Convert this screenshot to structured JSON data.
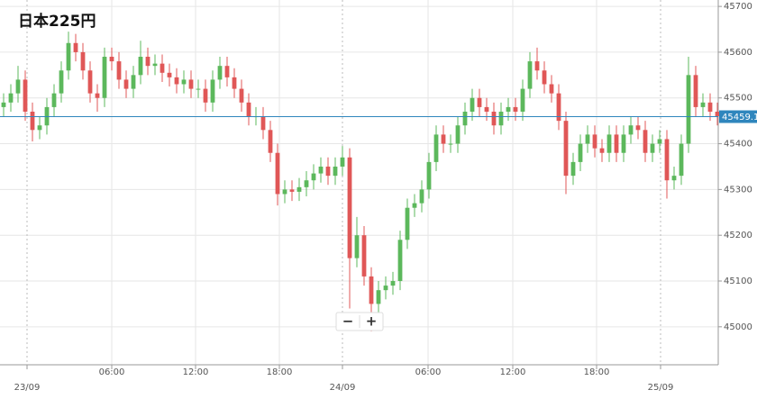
{
  "chart_data": {
    "type": "candlestick",
    "title": "日本225円",
    "open": [
      45480,
      45490,
      45510,
      45540,
      45470,
      45430,
      45440,
      45480,
      45510,
      45560,
      45620,
      45600,
      45560,
      45510,
      45500,
      45590,
      45580,
      45540,
      45520,
      45550,
      45590,
      45570,
      45575,
      45555,
      45545,
      45530,
      45540,
      45520,
      45520,
      45490,
      45540,
      45570,
      45545,
      45520,
      45490,
      45460,
      45460,
      45430,
      45380,
      45290,
      45300,
      45295,
      45305,
      45320,
      45335,
      45350,
      45330,
      45350,
      45370,
      45150,
      45200,
      45110,
      45050,
      45080,
      45090,
      45100,
      45190,
      45260,
      45270,
      45300,
      45360,
      45420,
      45400,
      45400,
      45440,
      45470,
      45500,
      45480,
      45470,
      45440,
      45470,
      45480,
      45470,
      45520,
      45580,
      45560,
      45530,
      45510,
      45450,
      45330,
      45360,
      45400,
      45420,
      45390,
      45380,
      45420,
      45380,
      45420,
      45440,
      45430,
      45380,
      45400,
      45410,
      45320,
      45330,
      45400,
      45550,
      45480,
      45490,
      45470
    ],
    "high": [
      45510,
      45530,
      45570,
      45560,
      45490,
      45460,
      45500,
      45530,
      45580,
      45645,
      45640,
      45620,
      45580,
      45530,
      45610,
      45610,
      45600,
      45560,
      45570,
      45625,
      45610,
      45595,
      45595,
      45575,
      45565,
      45560,
      45560,
      45540,
      45540,
      45560,
      45590,
      45590,
      45565,
      45540,
      45510,
      45480,
      45480,
      45450,
      45400,
      45320,
      45320,
      45325,
      45340,
      45355,
      45370,
      45370,
      45370,
      45395,
      45390,
      45240,
      45220,
      45130,
      45100,
      45110,
      45120,
      45210,
      45280,
      45290,
      45320,
      45380,
      45440,
      45440,
      45420,
      45460,
      45490,
      45520,
      45520,
      45500,
      45490,
      45490,
      45500,
      45500,
      45540,
      45600,
      45610,
      45580,
      45550,
      45530,
      45470,
      45380,
      45420,
      45440,
      45440,
      45410,
      45440,
      45440,
      45440,
      45460,
      45460,
      45450,
      45420,
      45430,
      45430,
      45350,
      45420,
      45590,
      45570,
      45510,
      45510,
      45490
    ],
    "low": [
      45460,
      45470,
      45490,
      45450,
      45405,
      45410,
      45420,
      45460,
      45490,
      45540,
      45580,
      45540,
      45490,
      45470,
      45480,
      45560,
      45520,
      45500,
      45500,
      45530,
      45550,
      45550,
      45535,
      45525,
      45510,
      45510,
      45500,
      45500,
      45470,
      45470,
      45520,
      45525,
      45500,
      45470,
      45440,
      45440,
      45410,
      45360,
      45265,
      45270,
      45275,
      45275,
      45285,
      45300,
      45315,
      45310,
      45310,
      45330,
      45040,
      45130,
      45090,
      44990,
      45030,
      45060,
      45070,
      45080,
      45170,
      45240,
      45250,
      45280,
      45340,
      45380,
      45380,
      45380,
      45420,
      45450,
      45460,
      45450,
      45420,
      45420,
      45450,
      45450,
      45450,
      45500,
      45540,
      45510,
      45490,
      45430,
      45290,
      45310,
      45340,
      45380,
      45370,
      45360,
      45360,
      45360,
      45360,
      45400,
      45410,
      45360,
      45360,
      45380,
      45280,
      45300,
      45310,
      45380,
      45460,
      45460,
      45450,
      45440
    ],
    "close": [
      45490,
      45510,
      45540,
      45470,
      45430,
      45440,
      45480,
      45510,
      45560,
      45620,
      45600,
      45560,
      45510,
      45500,
      45590,
      45580,
      45540,
      45520,
      45550,
      45590,
      45570,
      45575,
      45555,
      45545,
      45530,
      45540,
      45520,
      45520,
      45490,
      45540,
      45570,
      45545,
      45520,
      45490,
      45460,
      45460,
      45430,
      45380,
      45290,
      45300,
      45295,
      45305,
      45320,
      45335,
      45350,
      45330,
      45350,
      45370,
      45150,
      45200,
      45110,
      45050,
      45080,
      45090,
      45100,
      45190,
      45260,
      45270,
      45300,
      45360,
      45420,
      45400,
      45400,
      45440,
      45470,
      45500,
      45480,
      45470,
      45440,
      45470,
      45480,
      45470,
      45520,
      45580,
      45560,
      45530,
      45510,
      45450,
      45330,
      45360,
      45400,
      45420,
      45390,
      45380,
      45420,
      45380,
      45420,
      45440,
      45430,
      45380,
      45400,
      45410,
      45320,
      45330,
      45400,
      45550,
      45480,
      45490,
      45470,
      45460
    ],
    "up_color": "#5cb85c",
    "down_color": "#e05757",
    "xlim": [
      -0.5,
      99.125
    ],
    "xticks": [
      {
        "value": 3.25,
        "label": "23/09"
      },
      {
        "value": 15,
        "label": "06:00"
      },
      {
        "value": 26.625,
        "label": "12:00"
      },
      {
        "value": 38.25,
        "label": "18:00"
      },
      {
        "value": 47,
        "label": "24/09"
      },
      {
        "value": 58.875,
        "label": "06:00"
      },
      {
        "value": 70.625,
        "label": "12:00"
      },
      {
        "value": 82.25,
        "label": "18:00"
      },
      {
        "value": 91.125,
        "label": "25/09"
      }
    ],
    "ylim": [
      44917,
      45714
    ],
    "yticks": [
      45000,
      45100,
      45200,
      45300,
      45400,
      45500,
      45600,
      45700
    ],
    "current_price": 45459.1,
    "current_price_color": "#2f86bd",
    "grid": true
  },
  "controls": [
    "−",
    "+"
  ]
}
